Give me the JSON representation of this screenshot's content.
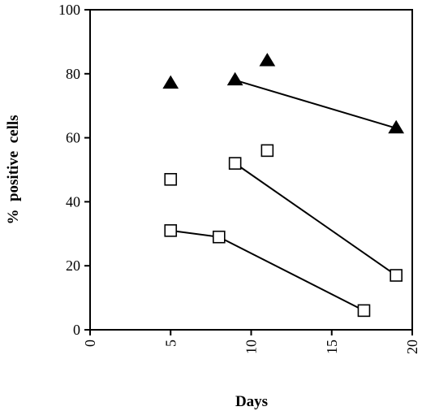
{
  "chart_data": {
    "type": "scatter",
    "title": "",
    "xlabel": "Days",
    "ylabel": "%  positive  cells",
    "xlim": [
      0,
      20
    ],
    "ylim": [
      0,
      100
    ],
    "xticks": [
      0,
      5,
      10,
      15,
      20
    ],
    "yticks": [
      0,
      20,
      40,
      60,
      80,
      100
    ],
    "xtick_labels": [
      "0",
      "5",
      "10",
      "15",
      "20"
    ],
    "ytick_labels": [
      "0",
      "20",
      "40",
      "60",
      "80",
      "100"
    ],
    "x_tick_labels_rotated": true,
    "grid": false,
    "legend": false,
    "series": [
      {
        "marker": "filled-triangle",
        "color": "#000000",
        "points": [
          [
            5,
            77
          ],
          [
            9,
            78
          ],
          [
            11,
            84
          ],
          [
            19,
            63
          ]
        ],
        "lines": [
          [
            [
              9,
              78
            ],
            [
              19,
              63
            ]
          ]
        ]
      },
      {
        "marker": "open-square",
        "color": "#000000",
        "points": [
          [
            5,
            47
          ],
          [
            9,
            52
          ],
          [
            11,
            56
          ],
          [
            19,
            17
          ]
        ],
        "lines": [
          [
            [
              9,
              52
            ],
            [
              19,
              17
            ]
          ]
        ]
      },
      {
        "marker": "open-square",
        "color": "#000000",
        "points": [
          [
            5,
            31
          ],
          [
            8,
            29
          ],
          [
            17,
            6
          ]
        ],
        "lines": [
          [
            [
              5,
              31
            ],
            [
              8,
              29
            ]
          ],
          [
            [
              8,
              29
            ],
            [
              17,
              6
            ]
          ]
        ]
      }
    ]
  }
}
